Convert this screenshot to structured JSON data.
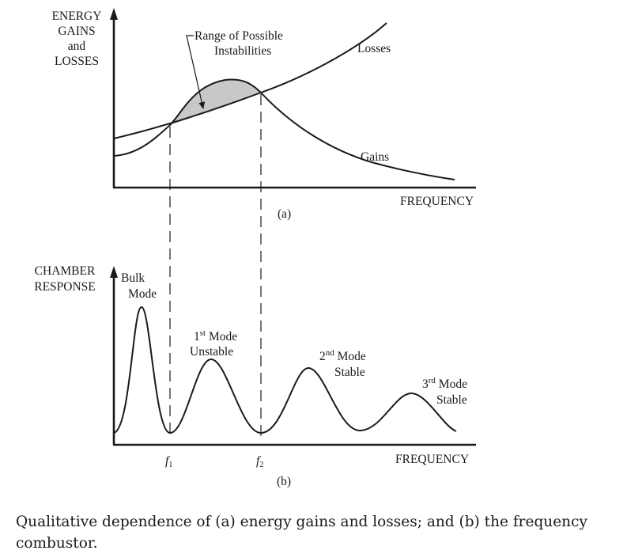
{
  "panel_a": {
    "y_axis_label": [
      "ENERGY",
      "GAINS",
      "and",
      "LOSSES"
    ],
    "x_axis_label": "FREQUENCY",
    "panel_tag": "(a)",
    "curves": [
      "Losses",
      "Gains"
    ],
    "annotation": [
      "Range of Possible",
      "Instabilities"
    ]
  },
  "panel_b": {
    "y_axis_label": [
      "CHAMBER",
      "RESPONSE"
    ],
    "x_axis_label": "FREQUENCY",
    "panel_tag": "(b)",
    "f1": "f",
    "f1_sub": "1",
    "f2": "f",
    "f2_sub": "2",
    "modes": [
      {
        "line1": "Bulk",
        "line2": "Mode"
      },
      {
        "line1": "1",
        "sup": "st",
        "line1_rest": " Mode",
        "line2": "Unstable"
      },
      {
        "line1": "2",
        "sup": "nd",
        "line1_rest": " Mode",
        "line2": "Stable"
      },
      {
        "line1": "3",
        "sup": "rd",
        "line1_rest": " Mode",
        "line2": "Stable"
      }
    ]
  },
  "caption": "Qualitative dependence of (a) energy gains and losses; and (b) the frequency\ncombustor.",
  "colors": {
    "ink": "#1a1a1a",
    "shade": "#c8c8c8"
  }
}
